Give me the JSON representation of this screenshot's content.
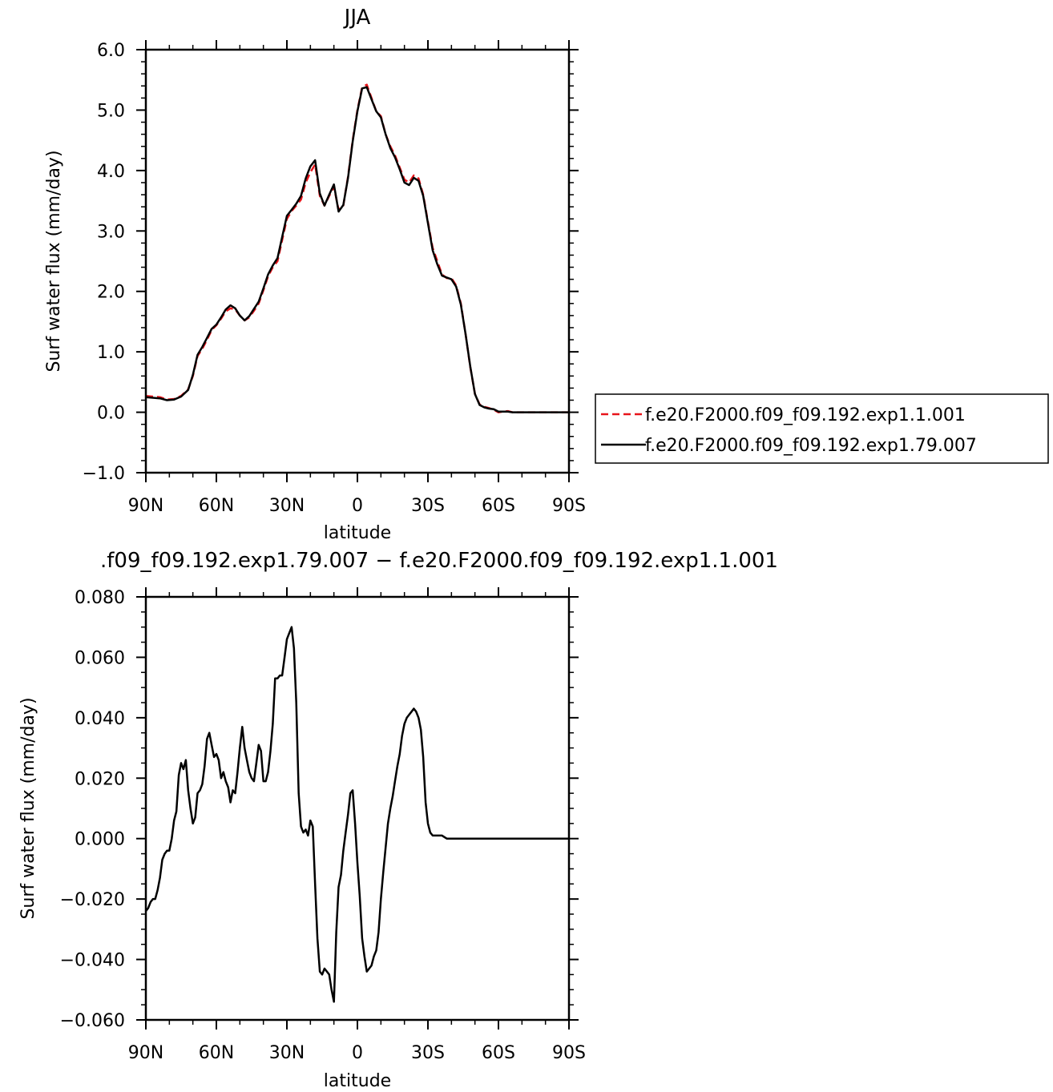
{
  "chart_data": [
    {
      "type": "line",
      "title": "JJA",
      "xlabel": "latitude",
      "ylabel": "Surf water flux (mm/day)",
      "xlim": [
        90,
        -90
      ],
      "ylim": [
        -1.0,
        6.0
      ],
      "x_ticks": [
        {
          "value": 90,
          "label": "90N"
        },
        {
          "value": 60,
          "label": "60N"
        },
        {
          "value": 30,
          "label": "30N"
        },
        {
          "value": 0,
          "label": "0"
        },
        {
          "value": -30,
          "label": "30S"
        },
        {
          "value": -60,
          "label": "60S"
        },
        {
          "value": -90,
          "label": "90S"
        }
      ],
      "y_ticks": [
        {
          "value": -1.0,
          "label": "−1.0"
        },
        {
          "value": 0.0,
          "label": "0.0"
        },
        {
          "value": 1.0,
          "label": "1.0"
        },
        {
          "value": 2.0,
          "label": "2.0"
        },
        {
          "value": 3.0,
          "label": "3.0"
        },
        {
          "value": 4.0,
          "label": "4.0"
        },
        {
          "value": 5.0,
          "label": "5.0"
        },
        {
          "value": 6.0,
          "label": "6.0"
        }
      ],
      "grid": false,
      "legend_position": "right",
      "series": [
        {
          "name": "f.e20.F2000.f09_f09.192.exp1.1.001",
          "color": "#e8141a",
          "dash": "dashed",
          "x": [
            90,
            87,
            84,
            81,
            78,
            75,
            72,
            70,
            68,
            66,
            64,
            62,
            60,
            58,
            56,
            54,
            52,
            50,
            48,
            46,
            44,
            42,
            40,
            38,
            36,
            34,
            32,
            30,
            28,
            26,
            24,
            22,
            20,
            18,
            16,
            14,
            12,
            10,
            8,
            6,
            4,
            2,
            0,
            -2,
            -4,
            -6,
            -8,
            -10,
            -12,
            -14,
            -16,
            -18,
            -20,
            -22,
            -24,
            -26,
            -28,
            -30,
            -32,
            -34,
            -36,
            -38,
            -40,
            -42,
            -44,
            -46,
            -48,
            -50,
            -52,
            -54,
            -56,
            -58,
            -60,
            -62,
            -64,
            -66,
            -68,
            -70,
            -72,
            -74,
            -76,
            -78,
            -80,
            -82,
            -84,
            -86,
            -88,
            -90
          ],
          "values": [
            0.27,
            0.26,
            0.25,
            0.21,
            0.22,
            0.27,
            0.38,
            0.6,
            0.93,
            1.05,
            1.2,
            1.36,
            1.44,
            1.55,
            1.67,
            1.72,
            1.7,
            1.6,
            1.52,
            1.57,
            1.68,
            1.8,
            2.02,
            2.25,
            2.4,
            2.5,
            2.85,
            3.2,
            3.33,
            3.42,
            3.52,
            3.8,
            3.97,
            4.1,
            3.58,
            3.42,
            3.58,
            3.73,
            3.35,
            3.42,
            3.9,
            4.5,
            5.0,
            5.38,
            5.42,
            5.2,
            4.98,
            4.9,
            4.6,
            4.4,
            4.25,
            4.05,
            3.85,
            3.8,
            3.92,
            3.87,
            3.6,
            3.15,
            2.72,
            2.5,
            2.28,
            2.22,
            2.22,
            2.1,
            1.8,
            1.3,
            0.75,
            0.3,
            0.13,
            0.09,
            0.07,
            0.04,
            0.0,
            0.01,
            0.02,
            0.0,
            0.0,
            0.0,
            0.0,
            0.0,
            0.0,
            0.0,
            0.0,
            0.0,
            0.0,
            0.0,
            0.0,
            0.0
          ]
        },
        {
          "name": "f.e20.F2000.f09_f09.192.exp1.79.007",
          "color": "#000000",
          "dash": "solid",
          "x": [
            90,
            87,
            84,
            81,
            78,
            75,
            72,
            70,
            68,
            66,
            64,
            62,
            60,
            58,
            56,
            54,
            52,
            50,
            48,
            46,
            44,
            42,
            40,
            38,
            36,
            34,
            32,
            30,
            28,
            26,
            24,
            22,
            20,
            18,
            16,
            14,
            12,
            10,
            8,
            6,
            4,
            2,
            0,
            -2,
            -4,
            -6,
            -8,
            -10,
            -12,
            -14,
            -16,
            -18,
            -20,
            -22,
            -24,
            -26,
            -28,
            -30,
            -32,
            -34,
            -36,
            -38,
            -40,
            -42,
            -44,
            -46,
            -48,
            -50,
            -52,
            -54,
            -56,
            -58,
            -60,
            -62,
            -64,
            -66,
            -68,
            -70,
            -72,
            -74,
            -76,
            -78,
            -80,
            -82,
            -84,
            -86,
            -88,
            -90
          ],
          "values": [
            0.25,
            0.24,
            0.23,
            0.2,
            0.21,
            0.26,
            0.37,
            0.62,
            0.95,
            1.08,
            1.23,
            1.38,
            1.45,
            1.57,
            1.7,
            1.77,
            1.72,
            1.6,
            1.52,
            1.59,
            1.71,
            1.83,
            2.05,
            2.28,
            2.43,
            2.55,
            2.9,
            3.25,
            3.35,
            3.45,
            3.58,
            3.87,
            4.07,
            4.17,
            3.62,
            3.42,
            3.6,
            3.77,
            3.32,
            3.43,
            3.88,
            4.48,
            4.98,
            5.36,
            5.38,
            5.18,
            4.98,
            4.88,
            4.6,
            4.37,
            4.22,
            4.02,
            3.8,
            3.76,
            3.88,
            3.83,
            3.58,
            3.13,
            2.68,
            2.45,
            2.26,
            2.23,
            2.2,
            2.08,
            1.78,
            1.3,
            0.76,
            0.3,
            0.12,
            0.08,
            0.06,
            0.05,
            0.01,
            0.01,
            0.01,
            0.0,
            0.0,
            0.0,
            0.0,
            0.0,
            0.0,
            0.0,
            0.0,
            0.0,
            0.0,
            0.0,
            0.0,
            0.0
          ]
        }
      ]
    },
    {
      "type": "line",
      "title": ".f09_f09.192.exp1.79.007 − f.e20.F2000.f09_f09.192.exp1.1.001",
      "xlabel": "latitude",
      "ylabel": "Surf water flux (mm/day)",
      "xlim": [
        90,
        -90
      ],
      "ylim": [
        -0.06,
        0.08
      ],
      "x_ticks": [
        {
          "value": 90,
          "label": "90N"
        },
        {
          "value": 60,
          "label": "60N"
        },
        {
          "value": 30,
          "label": "30N"
        },
        {
          "value": 0,
          "label": "0"
        },
        {
          "value": -30,
          "label": "30S"
        },
        {
          "value": -60,
          "label": "60S"
        },
        {
          "value": -90,
          "label": "90S"
        }
      ],
      "y_ticks": [
        {
          "value": -0.06,
          "label": "−0.060"
        },
        {
          "value": -0.04,
          "label": "−0.040"
        },
        {
          "value": -0.02,
          "label": "−0.020"
        },
        {
          "value": 0.0,
          "label": "0.000"
        },
        {
          "value": 0.02,
          "label": "0.020"
        },
        {
          "value": 0.04,
          "label": "0.040"
        },
        {
          "value": 0.06,
          "label": "0.060"
        },
        {
          "value": 0.08,
          "label": "0.080"
        }
      ],
      "grid": false,
      "series": [
        {
          "color": "#000000",
          "dash": "solid",
          "x": [
            90,
            89,
            88,
            87,
            86,
            85,
            84,
            83,
            82,
            81,
            80,
            79,
            78,
            77,
            76,
            75,
            74,
            73,
            72,
            71,
            70,
            69,
            68,
            67,
            66,
            65,
            64,
            63,
            62,
            61,
            60,
            59,
            58,
            57,
            56,
            55,
            54,
            53,
            52,
            51,
            50,
            49,
            48,
            47,
            46,
            45,
            44,
            43,
            42,
            41,
            40,
            39,
            38,
            37,
            36,
            35,
            34,
            33,
            32,
            31,
            30,
            29,
            28,
            27,
            26,
            25,
            24,
            23,
            22,
            21,
            20,
            19,
            18,
            17,
            16,
            15,
            14,
            13,
            12,
            11,
            10,
            9,
            8,
            7,
            6,
            5,
            4,
            3,
            2,
            1,
            0,
            -1,
            -2,
            -3,
            -4,
            -5,
            -6,
            -7,
            -8,
            -9,
            -10,
            -11,
            -12,
            -13,
            -14,
            -15,
            -16,
            -17,
            -18,
            -19,
            -20,
            -21,
            -22,
            -23,
            -24,
            -25,
            -26,
            -27,
            -28,
            -29,
            -30,
            -31,
            -32,
            -33,
            -34,
            -35,
            -36,
            -37,
            -38,
            -39,
            -40,
            -42,
            -44,
            -46,
            -48,
            -50,
            -52,
            -54,
            -56,
            -58,
            -60,
            -61,
            -62,
            -63,
            -64,
            -65,
            -66,
            -67,
            -68,
            -69,
            -70,
            -72,
            -74,
            -76,
            -78,
            -80,
            -82,
            -84,
            -86,
            -88,
            -90
          ],
          "values": [
            -0.024,
            -0.023,
            -0.021,
            -0.02,
            -0.02,
            -0.017,
            -0.013,
            -0.007,
            -0.005,
            -0.004,
            -0.004,
            0.0,
            0.006,
            0.009,
            0.021,
            0.025,
            0.023,
            0.026,
            0.016,
            0.01,
            0.005,
            0.007,
            0.015,
            0.016,
            0.018,
            0.024,
            0.033,
            0.035,
            0.031,
            0.027,
            0.028,
            0.026,
            0.02,
            0.022,
            0.019,
            0.017,
            0.012,
            0.016,
            0.015,
            0.022,
            0.03,
            0.037,
            0.03,
            0.026,
            0.022,
            0.02,
            0.019,
            0.025,
            0.031,
            0.029,
            0.019,
            0.019,
            0.022,
            0.029,
            0.038,
            0.053,
            0.053,
            0.054,
            0.054,
            0.06,
            0.066,
            0.068,
            0.07,
            0.063,
            0.045,
            0.015,
            0.004,
            0.002,
            0.003,
            0.001,
            0.006,
            0.004,
            -0.015,
            -0.033,
            -0.044,
            -0.045,
            -0.043,
            -0.044,
            -0.045,
            -0.05,
            -0.054,
            -0.031,
            -0.016,
            -0.012,
            -0.004,
            0.002,
            0.008,
            0.015,
            0.016,
            0.005,
            -0.008,
            -0.019,
            -0.033,
            -0.039,
            -0.044,
            -0.043,
            -0.042,
            -0.039,
            -0.037,
            -0.031,
            -0.02,
            -0.011,
            -0.003,
            0.005,
            0.01,
            0.014,
            0.019,
            0.024,
            0.028,
            0.034,
            0.038,
            0.04,
            0.041,
            0.042,
            0.043,
            0.042,
            0.04,
            0.036,
            0.027,
            0.012,
            0.005,
            0.002,
            0.001,
            0.001,
            0.001,
            0.001,
            0.001,
            0.0005,
            0.0,
            0.0,
            0.0,
            0.0,
            0.0,
            0.0,
            0.0,
            0.0,
            0.0,
            0.0,
            0.0,
            0.0,
            0.0,
            0.0,
            0.0,
            0.0,
            0.0,
            0.0,
            0.0,
            0.0,
            0.0,
            0.0,
            0.0,
            0.0,
            0.0,
            0.0,
            0.0,
            0.0,
            0.0,
            0.0,
            0.0,
            0.0,
            0.0
          ]
        }
      ]
    }
  ]
}
